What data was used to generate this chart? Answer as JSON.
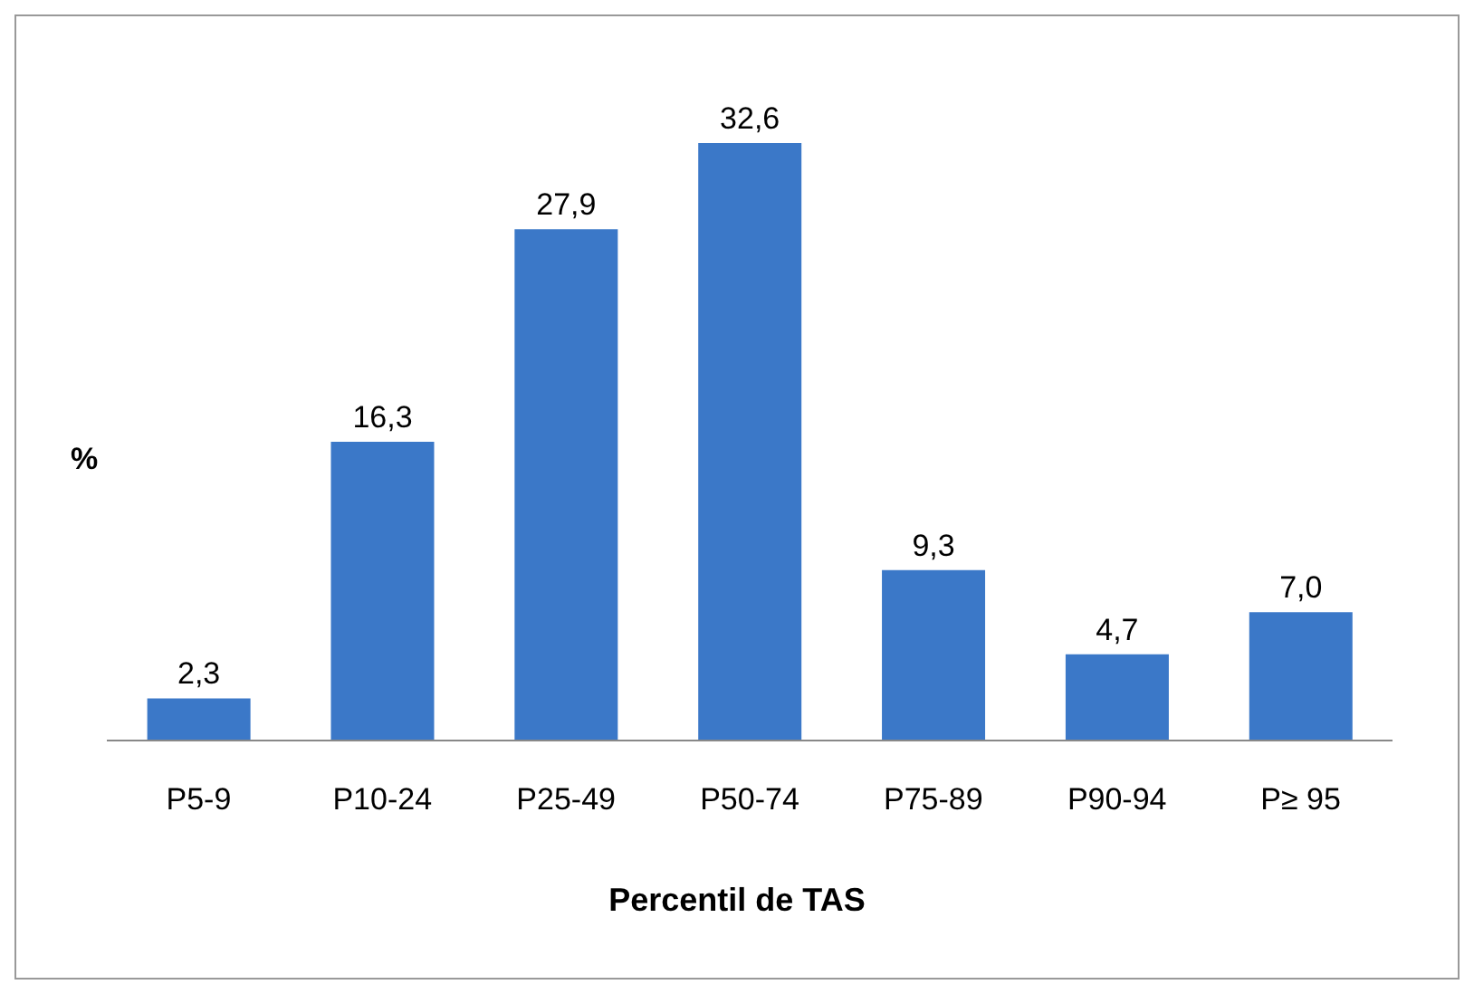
{
  "chart_data": {
    "type": "bar",
    "xlabel": "Percentil de TAS",
    "ylabel": "%",
    "categories": [
      "P5-9",
      "P10-24",
      "P25-49",
      "P50-74",
      "P75-89",
      "P90-94",
      "P≥ 95"
    ],
    "values": [
      2.3,
      16.3,
      27.9,
      32.6,
      9.3,
      4.7,
      7.0
    ],
    "value_labels": [
      "2,3",
      "16,3",
      "27,9",
      "32,6",
      "9,3",
      "4,7",
      "7,0"
    ],
    "color": "#3b78c8"
  }
}
